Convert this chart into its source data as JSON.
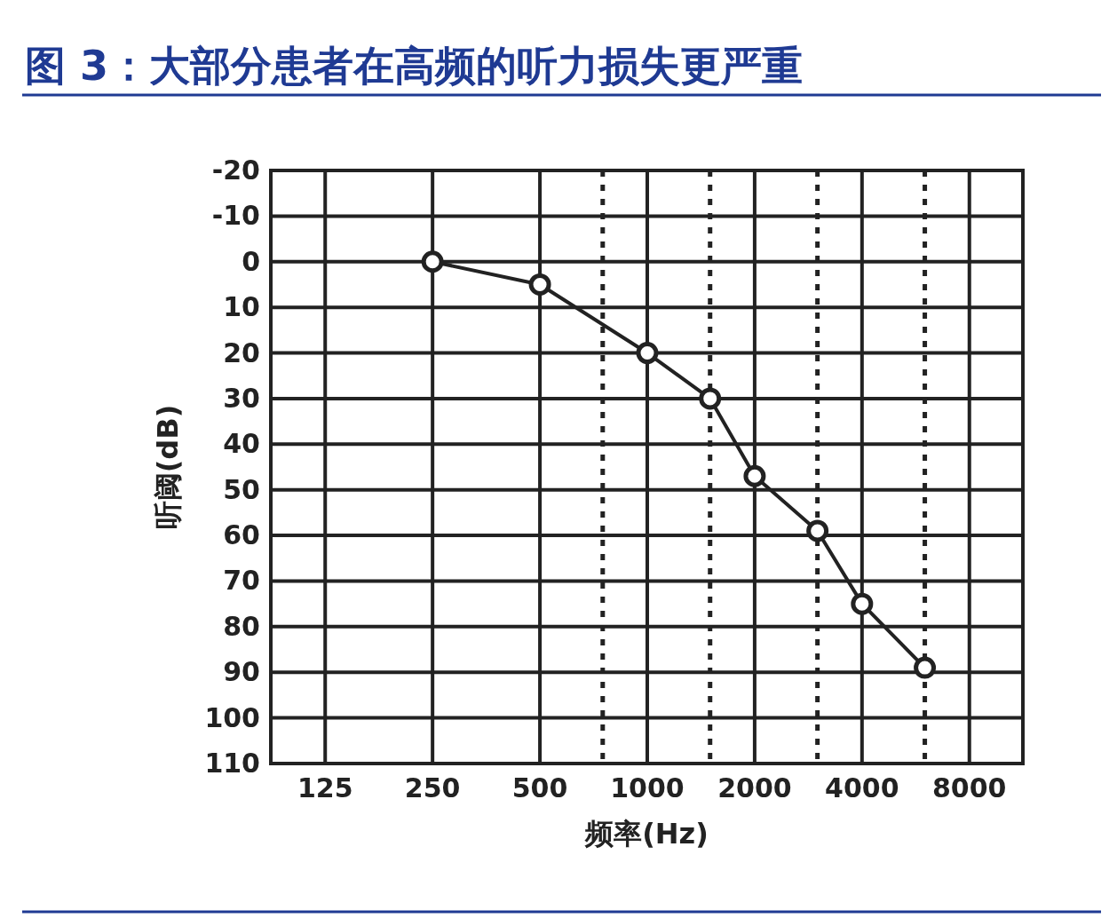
{
  "chart_data": {
    "type": "line",
    "title": "图 3：大部分患者在高频的听力损失更严重",
    "xlabel": "频率(Hz)",
    "ylabel": "听阈(dB)",
    "log": "x",
    "xlim": [
      88,
      11300
    ],
    "xticks": [
      125,
      250,
      500,
      1000,
      2000,
      4000,
      8000
    ],
    "ylim": [
      110,
      -20
    ],
    "yticks": [
      -20,
      -10,
      0,
      10,
      20,
      30,
      40,
      50,
      60,
      70,
      80,
      90,
      100,
      110
    ],
    "grid": true,
    "marker": "circle",
    "line_style": "solid",
    "ref_lines": [
      {
        "axis": "x",
        "value": 750,
        "line_style": "dotted"
      },
      {
        "axis": "x",
        "value": 1500,
        "line_style": "dotted"
      },
      {
        "axis": "x",
        "value": 3000,
        "line_style": "dotted"
      },
      {
        "axis": "x",
        "value": 6000,
        "line_style": "dotted"
      }
    ],
    "series": [
      {
        "color": "#222222",
        "x": [
          250,
          500,
          1000,
          1500,
          2000,
          3000,
          4000,
          6000
        ],
        "values": [
          0,
          5,
          20,
          30,
          47,
          59,
          75,
          89
        ]
      }
    ]
  }
}
